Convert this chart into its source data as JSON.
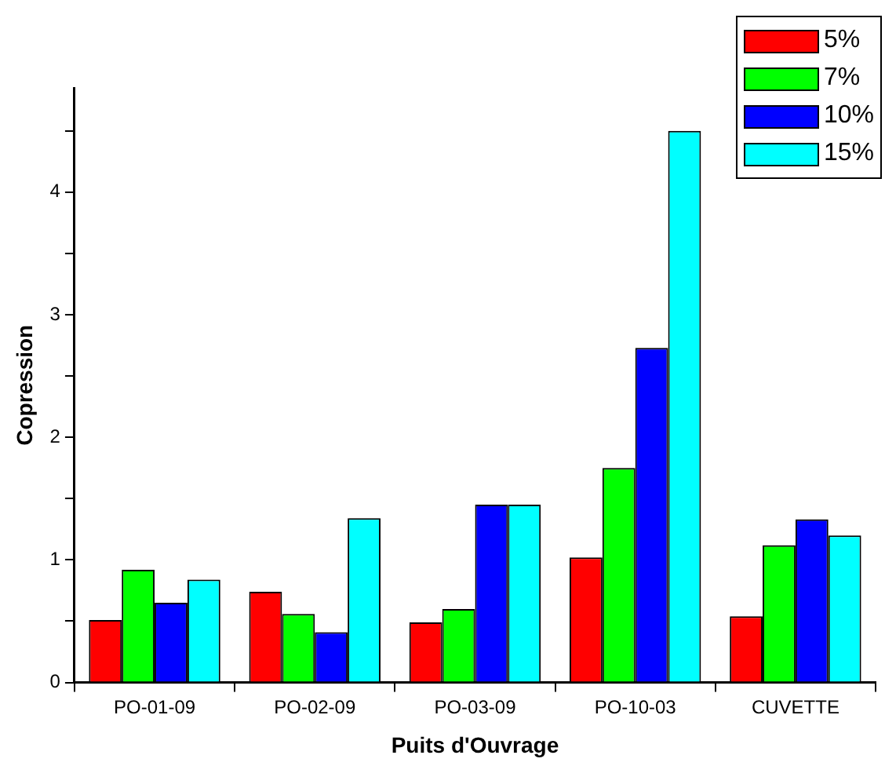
{
  "chart_data": {
    "type": "bar",
    "xlabel": "Puits d'Ouvrage",
    "ylabel": "Copression",
    "categories": [
      "PO-01-09",
      "PO-02-09",
      "PO-03-09",
      "PO-10-03",
      "CUVETTE"
    ],
    "series": [
      {
        "name": "5%",
        "color": "#ff0000",
        "values": [
          0.51,
          0.74,
          0.49,
          1.02,
          0.54
        ]
      },
      {
        "name": "7%",
        "color": "#00ff00",
        "values": [
          0.92,
          0.56,
          0.6,
          1.75,
          1.12
        ]
      },
      {
        "name": "10%",
        "color": "#0000ff",
        "values": [
          0.65,
          0.41,
          1.45,
          2.73,
          1.33
        ]
      },
      {
        "name": "15%",
        "color": "#00ffff",
        "values": [
          0.84,
          1.34,
          1.45,
          4.5,
          1.2
        ]
      }
    ],
    "ylim": [
      0,
      4.85
    ],
    "yticks": [
      0,
      {
        "value": 0.5,
        "label": null
      },
      1,
      {
        "value": 1.5,
        "label": null
      },
      2,
      {
        "value": 2.5,
        "label": null
      },
      3,
      {
        "value": 3.5,
        "label": null
      },
      4,
      {
        "value": 4.5,
        "label": null
      }
    ],
    "grid": false,
    "legend": "top right"
  }
}
